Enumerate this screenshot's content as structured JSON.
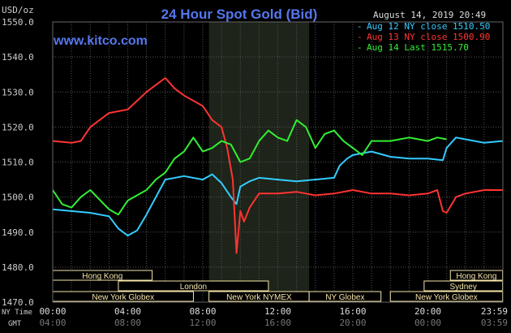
{
  "chart_data": {
    "type": "line",
    "title": "24 Hour Spot Gold (Bid)",
    "watermark": "www.kitco.com",
    "ylabel": "USD/oz",
    "timestamp": "August 14, 2019 20:49",
    "ylim": [
      1470,
      1550
    ],
    "y_ticks": [
      "1550.0",
      "1540.0",
      "1530.0",
      "1520.0",
      "1510.0",
      "1500.0",
      "1490.0",
      "1480.0",
      "1470.0"
    ],
    "x_row_labels": {
      "ny": "NY Time",
      "gmt": "GMT"
    },
    "x_ticks_ny": [
      "00:00",
      "04:00",
      "08:00",
      "12:00",
      "16:00",
      "20:00",
      "23:59"
    ],
    "x_ticks_gmt": [
      "04:00",
      "08:00",
      "12:00",
      "16:00",
      "20:00",
      "00:00",
      "03:59"
    ],
    "x_hours": [
      0,
      4,
      8,
      12,
      16,
      20,
      23.983
    ],
    "grid": true,
    "highlight_hours": [
      8.33,
      13.67
    ],
    "legend_position": "top-right",
    "legend": [
      {
        "label": "Aug 12 NY close 1510.50",
        "color": "#33ccff"
      },
      {
        "label": "Aug 13 NY close 1500.90",
        "color": "#ff3333"
      },
      {
        "label": "Aug 14 Last 1515.70",
        "color": "#33ee33"
      }
    ],
    "sessions": [
      {
        "label": "Hong Kong",
        "start": 0,
        "end": 5.3,
        "row": 0
      },
      {
        "label": "London",
        "start": 3.5,
        "end": 11.5,
        "row": 1
      },
      {
        "label": "New York Globex",
        "start": 0,
        "end": 7.5,
        "row": 2
      },
      {
        "label": "New York NYMEX",
        "start": 8.33,
        "end": 13.67,
        "row": 2
      },
      {
        "label": "NY Globex",
        "start": 13.67,
        "end": 17.5,
        "row": 2
      },
      {
        "label": "Hong Kong",
        "start": 21.2,
        "end": 23.98,
        "row": 0
      },
      {
        "label": "Sydney",
        "start": 19.8,
        "end": 23.98,
        "row": 1
      },
      {
        "label": "New York Globex",
        "start": 18.0,
        "end": 23.98,
        "row": 2
      }
    ],
    "series": [
      {
        "name": "Aug 12 NY close 1510.50",
        "color": "#33ccff",
        "x": [
          0,
          1,
          2,
          3,
          3.5,
          4,
          4.5,
          5,
          5.5,
          6,
          7,
          8,
          8.5,
          9,
          9.5,
          9.8,
          10,
          10.5,
          11,
          12,
          13,
          14,
          15,
          15.3,
          15.7,
          16,
          17,
          18,
          19,
          20,
          20.8,
          21,
          21.5,
          22,
          23,
          23.98
        ],
        "y": [
          1496.5,
          1496,
          1495.5,
          1494.5,
          1491,
          1489,
          1490.5,
          1495,
          1500,
          1505,
          1506,
          1505,
          1506.5,
          1504,
          1500,
          1498,
          1503,
          1504.5,
          1505.5,
          1505,
          1504.5,
          1505,
          1505.5,
          1509,
          1511,
          1512,
          1513,
          1511.5,
          1511,
          1511,
          1510.5,
          1514,
          1517,
          1516.5,
          1515.5,
          1516
        ]
      },
      {
        "name": "Aug 13 NY close 1500.90",
        "color": "#ff3333",
        "x": [
          0,
          1,
          1.5,
          2,
          3,
          4,
          5,
          5.5,
          6,
          6.5,
          7,
          8,
          8.5,
          9,
          9.3,
          9.6,
          9.8,
          10,
          10.2,
          10.5,
          11,
          12,
          13,
          14,
          15,
          16,
          17,
          18,
          19,
          20,
          20.5,
          20.8,
          21,
          21.5,
          22,
          23,
          23.98
        ],
        "y": [
          1516,
          1515.5,
          1516,
          1520,
          1524,
          1525,
          1530,
          1532,
          1534,
          1531,
          1529,
          1526,
          1522,
          1520,
          1514,
          1505,
          1484,
          1496,
          1493,
          1497,
          1501,
          1501,
          1501.5,
          1500.5,
          1501,
          1502,
          1501,
          1501,
          1500.5,
          1501,
          1502,
          1496,
          1495.5,
          1500,
          1501,
          1502,
          1502
        ]
      },
      {
        "name": "Aug 14 Last 1515.70",
        "color": "#33ee33",
        "x": [
          0,
          0.5,
          1,
          1.5,
          2,
          3,
          3.5,
          4,
          5,
          5.5,
          6,
          6.5,
          7,
          7.5,
          8,
          8.5,
          9,
          9.5,
          10,
          10.5,
          11,
          11.5,
          12,
          12.5,
          13,
          13.5,
          14,
          14.5,
          15,
          15.5,
          16,
          16.5,
          17,
          18,
          19,
          20,
          20.5,
          21
        ],
        "y": [
          1502,
          1498,
          1497,
          1500,
          1502,
          1496.5,
          1495,
          1499,
          1502,
          1505,
          1507,
          1511,
          1513,
          1517,
          1513,
          1514,
          1516,
          1515,
          1510,
          1511,
          1516,
          1519,
          1517,
          1516,
          1522,
          1520,
          1514,
          1518,
          1519,
          1516,
          1514,
          1512,
          1516,
          1516,
          1517,
          1516,
          1517,
          1516.5
        ]
      }
    ]
  }
}
